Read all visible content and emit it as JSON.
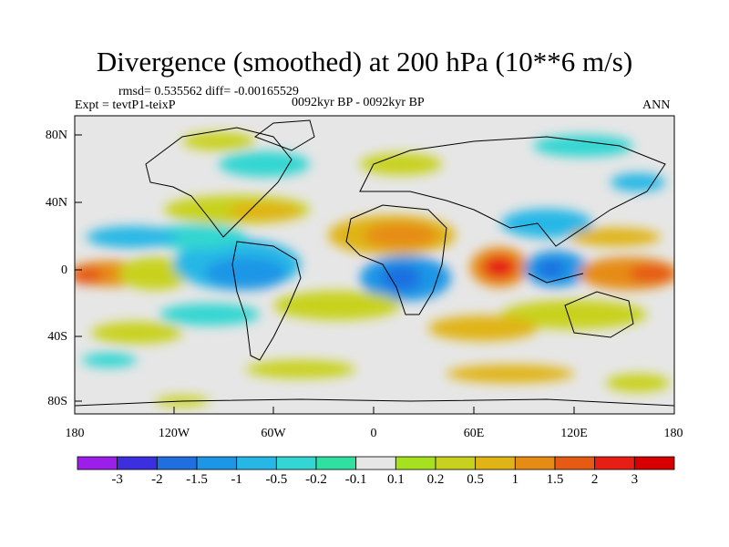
{
  "title": "Divergence (smoothed) at 200 hPa (10**6 m/s)",
  "stats": "rmsd= 0.535562 diff= -0.00165529",
  "experiment": "Expt = tevtP1-teixP",
  "period": "0092kyr BP - 0092kyr BP",
  "season": "ANN",
  "lat_ticks": [
    "80N",
    "40N",
    "0",
    "40S",
    "80S"
  ],
  "lon_ticks": [
    "180",
    "120W",
    "60W",
    "0",
    "60E",
    "120E",
    "180"
  ],
  "colorbar": {
    "labels": [
      "-3",
      "-2",
      "-1.5",
      "-1",
      "-0.5",
      "-0.2",
      "-0.1",
      "0.1",
      "0.2",
      "0.5",
      "1",
      "1.5",
      "2",
      "3"
    ],
    "colors": [
      "#9b1fe8",
      "#3b2fe0",
      "#1f6fe0",
      "#1e96e6",
      "#27b7e6",
      "#33d6d2",
      "#2fe0a0",
      "#e6e6e6",
      "#a6e01e",
      "#c8d21e",
      "#e0b414",
      "#e68c14",
      "#e65a14",
      "#e61e14",
      "#d60000"
    ]
  },
  "colors": {
    "background": "#e6e6e6",
    "coast": "#000000"
  }
}
